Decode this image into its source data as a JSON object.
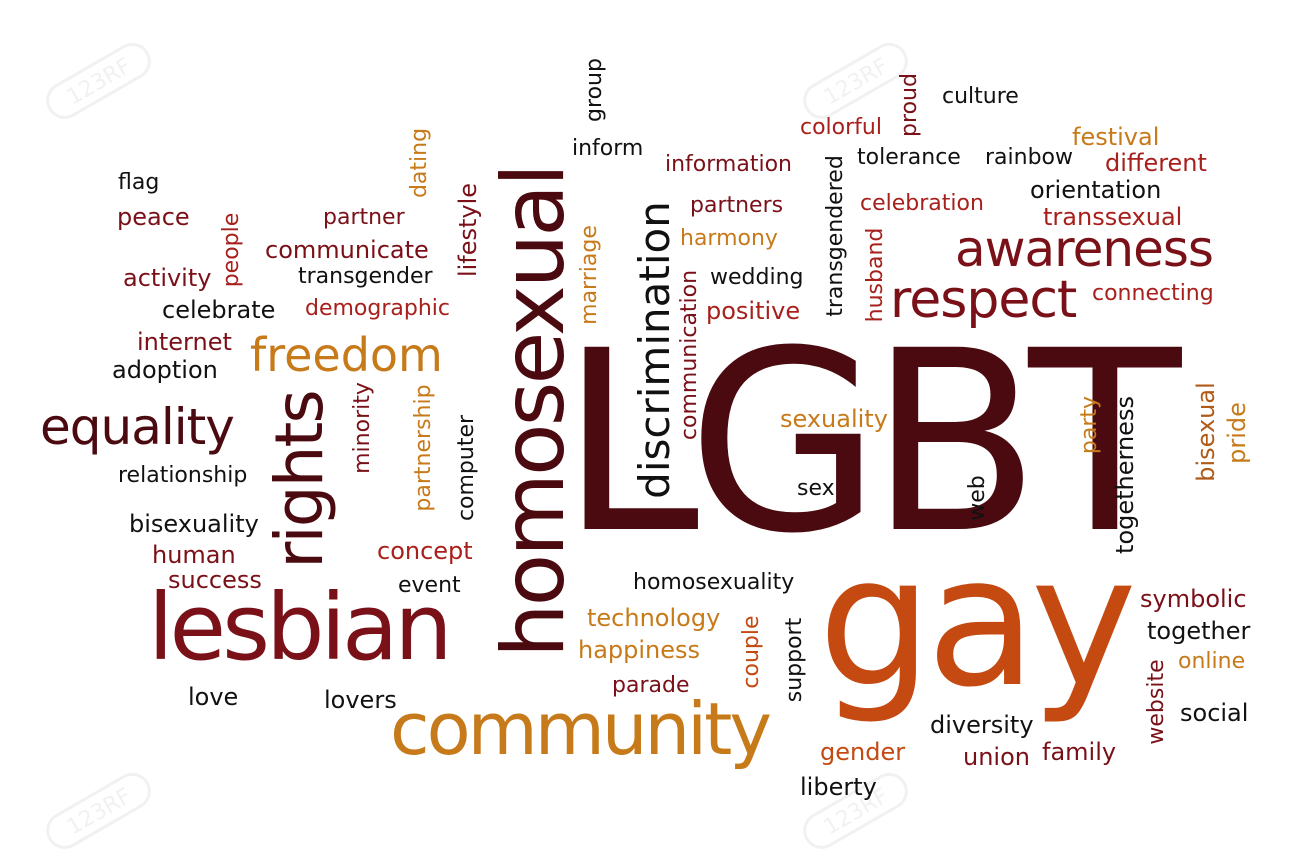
{
  "colors": {
    "maroon": "#4a0a10",
    "darkred": "#7a1018",
    "red": "#a8201c",
    "orange": "#c44a12",
    "amber": "#c77a1a",
    "brown": "#b05a18",
    "black": "#111111",
    "watermark": "#9a9a9a"
  },
  "watermark": {
    "text": "123RF"
  },
  "words": [
    {
      "text": "LGBT",
      "color": "maroon"
    },
    {
      "text": "gay",
      "color": "orange"
    },
    {
      "text": "homosexual",
      "color": "maroon"
    },
    {
      "text": "lesbian",
      "color": "darkred"
    },
    {
      "text": "community",
      "color": "amber"
    },
    {
      "text": "rights",
      "color": "maroon"
    },
    {
      "text": "awareness",
      "color": "darkred"
    },
    {
      "text": "respect",
      "color": "darkred"
    },
    {
      "text": "freedom",
      "color": "amber"
    },
    {
      "text": "equality",
      "color": "maroon"
    },
    {
      "text": "discrimination",
      "color": "black"
    },
    {
      "text": "group",
      "color": "black"
    },
    {
      "text": "inform",
      "color": "black"
    },
    {
      "text": "dating",
      "color": "amber"
    },
    {
      "text": "flag",
      "color": "black"
    },
    {
      "text": "peace",
      "color": "darkred"
    },
    {
      "text": "people",
      "color": "red"
    },
    {
      "text": "partner",
      "color": "darkred"
    },
    {
      "text": "communicate",
      "color": "darkred"
    },
    {
      "text": "lifestyle",
      "color": "darkred"
    },
    {
      "text": "activity",
      "color": "darkred"
    },
    {
      "text": "transgender",
      "color": "black"
    },
    {
      "text": "celebrate",
      "color": "black"
    },
    {
      "text": "demographic",
      "color": "red"
    },
    {
      "text": "internet",
      "color": "darkred"
    },
    {
      "text": "adoption",
      "color": "black"
    },
    {
      "text": "marriage",
      "color": "amber"
    },
    {
      "text": "information",
      "color": "darkred"
    },
    {
      "text": "partners",
      "color": "darkred"
    },
    {
      "text": "harmony",
      "color": "amber"
    },
    {
      "text": "communication",
      "color": "darkred"
    },
    {
      "text": "wedding",
      "color": "black"
    },
    {
      "text": "positive",
      "color": "red"
    },
    {
      "text": "colorful",
      "color": "red"
    },
    {
      "text": "proud",
      "color": "darkred"
    },
    {
      "text": "culture",
      "color": "black"
    },
    {
      "text": "transgendered",
      "color": "black"
    },
    {
      "text": "tolerance",
      "color": "black"
    },
    {
      "text": "rainbow",
      "color": "black"
    },
    {
      "text": "festival",
      "color": "amber"
    },
    {
      "text": "different",
      "color": "red"
    },
    {
      "text": "orientation",
      "color": "black"
    },
    {
      "text": "celebration",
      "color": "red"
    },
    {
      "text": "transsexual",
      "color": "red"
    },
    {
      "text": "husband",
      "color": "red"
    },
    {
      "text": "connecting",
      "color": "red"
    },
    {
      "text": "minority",
      "color": "darkred"
    },
    {
      "text": "partnership",
      "color": "amber"
    },
    {
      "text": "computer",
      "color": "black"
    },
    {
      "text": "relationship",
      "color": "black"
    },
    {
      "text": "bisexuality",
      "color": "black"
    },
    {
      "text": "human",
      "color": "darkred"
    },
    {
      "text": "success",
      "color": "darkred"
    },
    {
      "text": "concept",
      "color": "red"
    },
    {
      "text": "event",
      "color": "black"
    },
    {
      "text": "love",
      "color": "black"
    },
    {
      "text": "lovers",
      "color": "black"
    },
    {
      "text": "sexuality",
      "color": "amber"
    },
    {
      "text": "sex",
      "color": "black"
    },
    {
      "text": "party",
      "color": "amber"
    },
    {
      "text": "togetherness",
      "color": "black"
    },
    {
      "text": "web",
      "color": "black"
    },
    {
      "text": "bisexual",
      "color": "brown"
    },
    {
      "text": "pride",
      "color": "amber"
    },
    {
      "text": "homosexuality",
      "color": "black"
    },
    {
      "text": "technology",
      "color": "amber"
    },
    {
      "text": "happiness",
      "color": "amber"
    },
    {
      "text": "couple",
      "color": "orange"
    },
    {
      "text": "support",
      "color": "black"
    },
    {
      "text": "parade",
      "color": "darkred"
    },
    {
      "text": "symbolic",
      "color": "darkred"
    },
    {
      "text": "together",
      "color": "black"
    },
    {
      "text": "online",
      "color": "amber"
    },
    {
      "text": "website",
      "color": "darkred"
    },
    {
      "text": "social",
      "color": "black"
    },
    {
      "text": "diversity",
      "color": "black"
    },
    {
      "text": "union",
      "color": "darkred"
    },
    {
      "text": "family",
      "color": "darkred"
    },
    {
      "text": "gender",
      "color": "orange"
    },
    {
      "text": "liberty",
      "color": "black"
    }
  ]
}
